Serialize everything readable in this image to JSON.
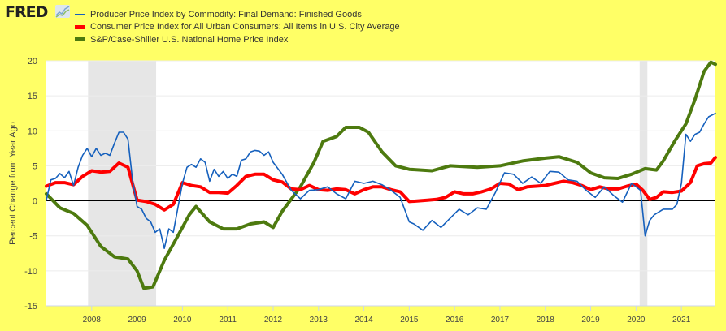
{
  "brand": {
    "name": "FRED",
    "icon": "chart-line-icon"
  },
  "legend": [
    {
      "label": "Producer Price Index by Commodity: Final Demand: Finished Goods",
      "color": "#1560bd"
    },
    {
      "label": "Consumer Price Index for All Urban Consumers: All Items in U.S. City Average",
      "color": "#ff0000"
    },
    {
      "label": "S&P/Case-Shiller U.S. National Home Price Index",
      "color": "#4d7a0f"
    }
  ],
  "chart_data": {
    "type": "line",
    "title": "",
    "xlabel": "",
    "ylabel": "Percent Change from Year Ago",
    "xlim": [
      2007.0,
      2021.75
    ],
    "ylim": [
      -15,
      20
    ],
    "yticks": [
      20,
      15,
      10,
      5,
      0,
      -5,
      -10,
      -15
    ],
    "xticks": [
      "2008",
      "2009",
      "2010",
      "2011",
      "2012",
      "2013",
      "2014",
      "2015",
      "2016",
      "2017",
      "2018",
      "2019",
      "2020",
      "2021"
    ],
    "grid": true,
    "legend_position": "top-left",
    "recessions": [
      [
        2007.92,
        2009.42
      ],
      [
        2020.08,
        2020.25
      ]
    ],
    "series": [
      {
        "name": "Producer Price Index by Commodity: Final Demand: Finished Goods",
        "color": "#1560bd",
        "x": [
          2007.0,
          2007.1,
          2007.2,
          2007.3,
          2007.4,
          2007.5,
          2007.6,
          2007.7,
          2007.8,
          2007.9,
          2008.0,
          2008.1,
          2008.2,
          2008.3,
          2008.4,
          2008.5,
          2008.6,
          2008.7,
          2008.8,
          2008.9,
          2009.0,
          2009.1,
          2009.2,
          2009.3,
          2009.4,
          2009.5,
          2009.6,
          2009.7,
          2009.8,
          2009.9,
          2010.0,
          2010.1,
          2010.2,
          2010.3,
          2010.4,
          2010.5,
          2010.6,
          2010.7,
          2010.8,
          2010.9,
          2011.0,
          2011.1,
          2011.2,
          2011.3,
          2011.4,
          2011.5,
          2011.6,
          2011.7,
          2011.8,
          2011.9,
          2012.0,
          2012.2,
          2012.4,
          2012.6,
          2012.8,
          2013.0,
          2013.2,
          2013.4,
          2013.6,
          2013.8,
          2014.0,
          2014.2,
          2014.4,
          2014.6,
          2014.8,
          2015.0,
          2015.1,
          2015.3,
          2015.5,
          2015.7,
          2015.9,
          2016.1,
          2016.3,
          2016.5,
          2016.7,
          2016.9,
          2017.1,
          2017.3,
          2017.5,
          2017.7,
          2017.9,
          2018.1,
          2018.3,
          2018.5,
          2018.7,
          2018.9,
          2019.1,
          2019.3,
          2019.5,
          2019.7,
          2019.9,
          2020.1,
          2020.2,
          2020.3,
          2020.4,
          2020.6,
          2020.8,
          2020.9,
          2021.0,
          2021.1,
          2021.2,
          2021.3,
          2021.4,
          2021.5,
          2021.6,
          2021.75
        ],
        "values": [
          0.1,
          3.0,
          3.2,
          3.9,
          3.3,
          4.2,
          2.2,
          4.8,
          6.5,
          7.5,
          6.3,
          7.5,
          6.5,
          6.8,
          6.5,
          8.2,
          9.8,
          9.8,
          8.8,
          3.0,
          -0.8,
          -1.2,
          -2.5,
          -3.0,
          -4.5,
          -4.0,
          -6.8,
          -4.0,
          -4.5,
          -1.0,
          2.5,
          4.8,
          5.2,
          4.8,
          6.0,
          5.5,
          2.8,
          4.5,
          3.5,
          4.2,
          3.2,
          3.8,
          3.5,
          5.8,
          6.0,
          7.0,
          7.2,
          7.1,
          6.5,
          7.0,
          5.5,
          3.8,
          1.5,
          0.3,
          1.5,
          1.6,
          2.0,
          1.0,
          0.3,
          2.8,
          2.5,
          2.8,
          2.3,
          1.5,
          0.5,
          -3.0,
          -3.3,
          -4.2,
          -2.8,
          -3.8,
          -2.5,
          -1.2,
          -2.0,
          -1.0,
          -1.2,
          1.2,
          4.0,
          3.8,
          2.5,
          3.4,
          2.5,
          4.2,
          4.1,
          3.0,
          2.8,
          1.5,
          0.5,
          2.0,
          0.8,
          -0.2,
          2.5,
          1.5,
          -5.0,
          -2.8,
          -2.0,
          -1.2,
          -1.2,
          -0.5,
          2.5,
          9.5,
          8.5,
          9.5,
          9.8,
          11.0,
          12.0,
          12.5
        ]
      },
      {
        "name": "Consumer Price Index for All Urban Consumers: All Items in U.S. City Average",
        "color": "#ff0000",
        "x": [
          2007.0,
          2007.2,
          2007.4,
          2007.6,
          2007.8,
          2008.0,
          2008.2,
          2008.4,
          2008.6,
          2008.8,
          2009.0,
          2009.2,
          2009.4,
          2009.6,
          2009.8,
          2010.0,
          2010.2,
          2010.4,
          2010.6,
          2010.8,
          2011.0,
          2011.2,
          2011.4,
          2011.6,
          2011.8,
          2012.0,
          2012.2,
          2012.4,
          2012.6,
          2012.8,
          2013.0,
          2013.2,
          2013.4,
          2013.6,
          2013.8,
          2014.0,
          2014.2,
          2014.4,
          2014.6,
          2014.8,
          2015.0,
          2015.2,
          2015.4,
          2015.6,
          2015.8,
          2016.0,
          2016.2,
          2016.4,
          2016.6,
          2016.8,
          2017.0,
          2017.2,
          2017.4,
          2017.6,
          2017.8,
          2018.0,
          2018.2,
          2018.4,
          2018.6,
          2018.8,
          2019.0,
          2019.2,
          2019.4,
          2019.6,
          2019.8,
          2020.0,
          2020.15,
          2020.3,
          2020.45,
          2020.6,
          2020.8,
          2021.0,
          2021.2,
          2021.35,
          2021.5,
          2021.65,
          2021.75
        ],
        "values": [
          2.1,
          2.6,
          2.6,
          2.3,
          3.5,
          4.3,
          4.1,
          4.2,
          5.4,
          4.8,
          0.1,
          -0.1,
          -0.5,
          -1.3,
          -0.5,
          2.6,
          2.2,
          2.0,
          1.2,
          1.2,
          1.1,
          2.2,
          3.5,
          3.8,
          3.8,
          3.0,
          2.7,
          1.7,
          1.6,
          2.2,
          1.6,
          1.5,
          1.7,
          1.6,
          1.0,
          1.6,
          2.0,
          2.0,
          1.6,
          1.3,
          -0.1,
          0.0,
          0.1,
          0.2,
          0.5,
          1.3,
          1.0,
          1.0,
          1.3,
          1.7,
          2.5,
          2.4,
          1.6,
          2.0,
          2.1,
          2.2,
          2.5,
          2.8,
          2.6,
          2.2,
          1.6,
          2.0,
          1.7,
          1.7,
          2.1,
          2.4,
          1.5,
          0.2,
          0.5,
          1.3,
          1.2,
          1.4,
          2.6,
          5.0,
          5.3,
          5.4,
          6.2
        ]
      },
      {
        "name": "S&P/Case-Shiller U.S. National Home Price Index",
        "color": "#4d7a0f",
        "x": [
          2007.0,
          2007.3,
          2007.6,
          2007.9,
          2008.2,
          2008.5,
          2008.8,
          2009.0,
          2009.15,
          2009.35,
          2009.6,
          2009.9,
          2010.15,
          2010.3,
          2010.6,
          2010.9,
          2011.2,
          2011.5,
          2011.8,
          2012.0,
          2012.2,
          2012.6,
          2012.9,
          2013.1,
          2013.4,
          2013.6,
          2013.9,
          2014.1,
          2014.4,
          2014.7,
          2015.0,
          2015.5,
          2015.9,
          2016.5,
          2017.0,
          2017.5,
          2018.0,
          2018.3,
          2018.7,
          2019.0,
          2019.3,
          2019.6,
          2019.9,
          2020.2,
          2020.45,
          2020.6,
          2020.85,
          2021.1,
          2021.3,
          2021.5,
          2021.65,
          2021.75
        ],
        "values": [
          1.0,
          -1.0,
          -1.8,
          -3.5,
          -6.5,
          -8.0,
          -8.3,
          -10.0,
          -12.5,
          -12.3,
          -8.5,
          -5.0,
          -2.0,
          -0.8,
          -3.0,
          -4.0,
          -4.0,
          -3.3,
          -3.0,
          -3.8,
          -1.5,
          2.0,
          5.5,
          8.5,
          9.2,
          10.5,
          10.5,
          9.8,
          7.0,
          5.0,
          4.5,
          4.3,
          5.0,
          4.8,
          5.0,
          5.7,
          6.1,
          6.3,
          5.5,
          4.0,
          3.3,
          3.2,
          3.8,
          4.6,
          4.4,
          5.7,
          8.5,
          11.0,
          14.5,
          18.5,
          19.8,
          19.5
        ]
      }
    ]
  }
}
